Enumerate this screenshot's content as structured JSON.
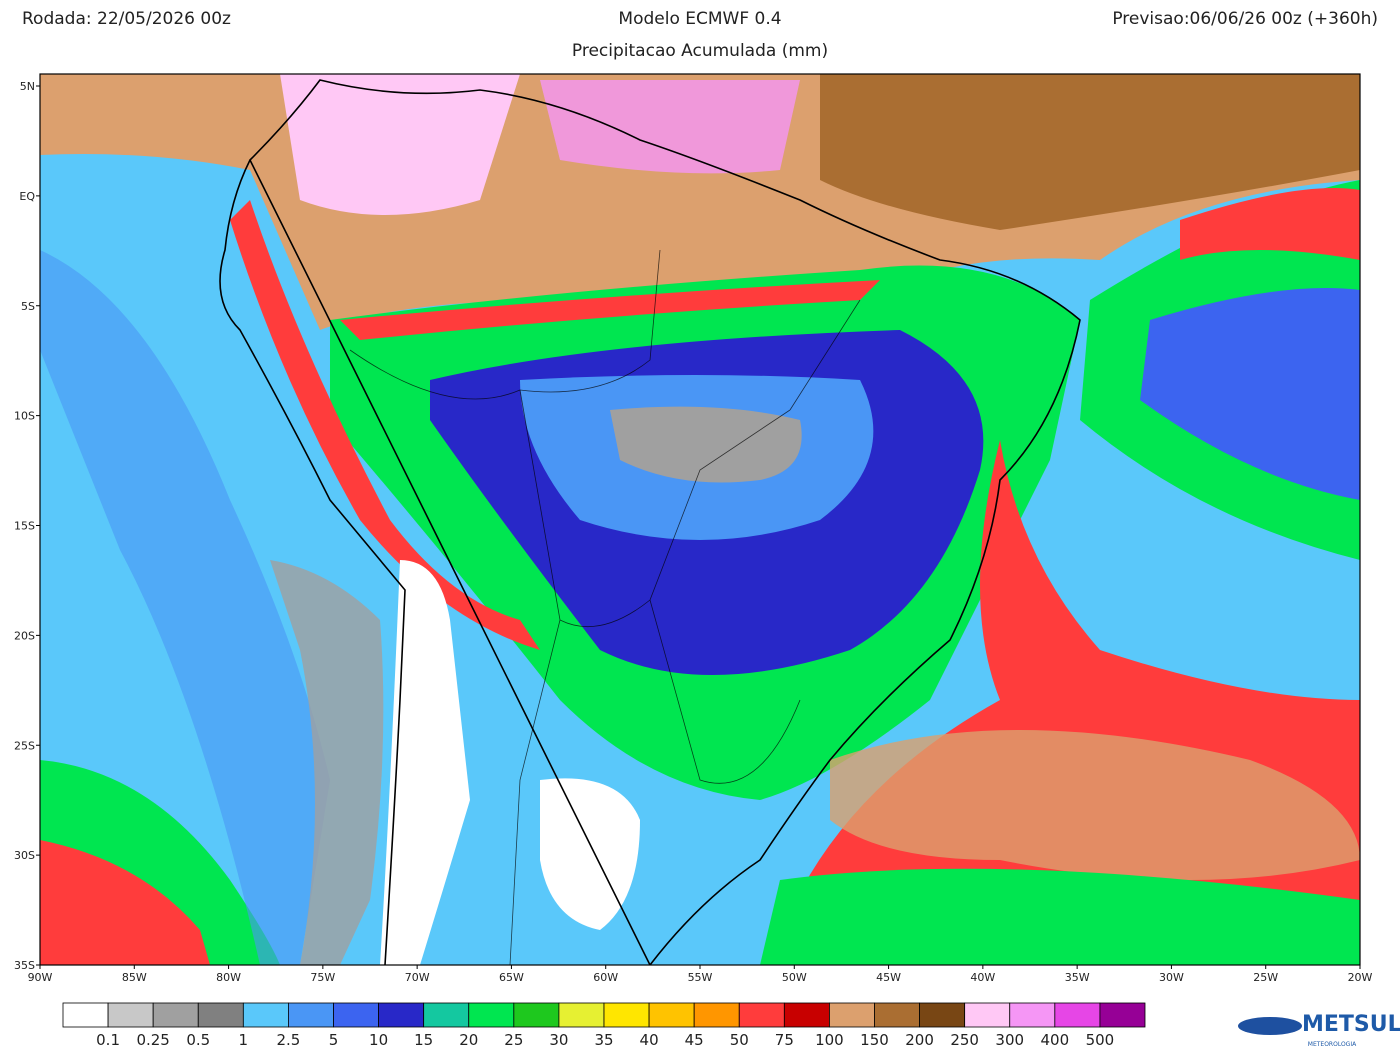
{
  "header": {
    "left": "Rodada: 22/05/2026 00z",
    "center": "Modelo ECMWF 0.4",
    "right": "Previsao:06/06/26 00z (+360h)",
    "subtitle": "Precipitacao Acumulada (mm)"
  },
  "lat_labels": [
    "5N",
    "EQ",
    "5S",
    "10S",
    "15S",
    "20S",
    "25S",
    "30S",
    "35S"
  ],
  "lon_labels": [
    "90W",
    "85W",
    "80W",
    "75W",
    "70W",
    "65W",
    "60W",
    "55W",
    "50W",
    "45W",
    "40W",
    "35W",
    "30W",
    "25W",
    "20W"
  ],
  "colorbar": {
    "colors": [
      "#ffffff",
      "#c8c8c8",
      "#a0a0a0",
      "#808080",
      "#5ac8fa",
      "#4a96f5",
      "#3c64f0",
      "#2828c8",
      "#14c8a0",
      "#00e650",
      "#1ec81e",
      "#e6f032",
      "#ffe600",
      "#ffc300",
      "#ff9600",
      "#ff3c3c",
      "#c80000",
      "#dca06e",
      "#aa6e32",
      "#784614",
      "#ffc8f5",
      "#f596f5",
      "#e646e6",
      "#960096"
    ],
    "labels": [
      "0.1",
      "0.25",
      "0.5",
      "1",
      "2.5",
      "5",
      "10",
      "15",
      "20",
      "25",
      "30",
      "35",
      "40",
      "45",
      "50",
      "75",
      "100",
      "150",
      "200",
      "250",
      "300",
      "400",
      "500"
    ]
  },
  "logo": {
    "name": "METSUL",
    "tagline": "METEOROLOGIA"
  }
}
